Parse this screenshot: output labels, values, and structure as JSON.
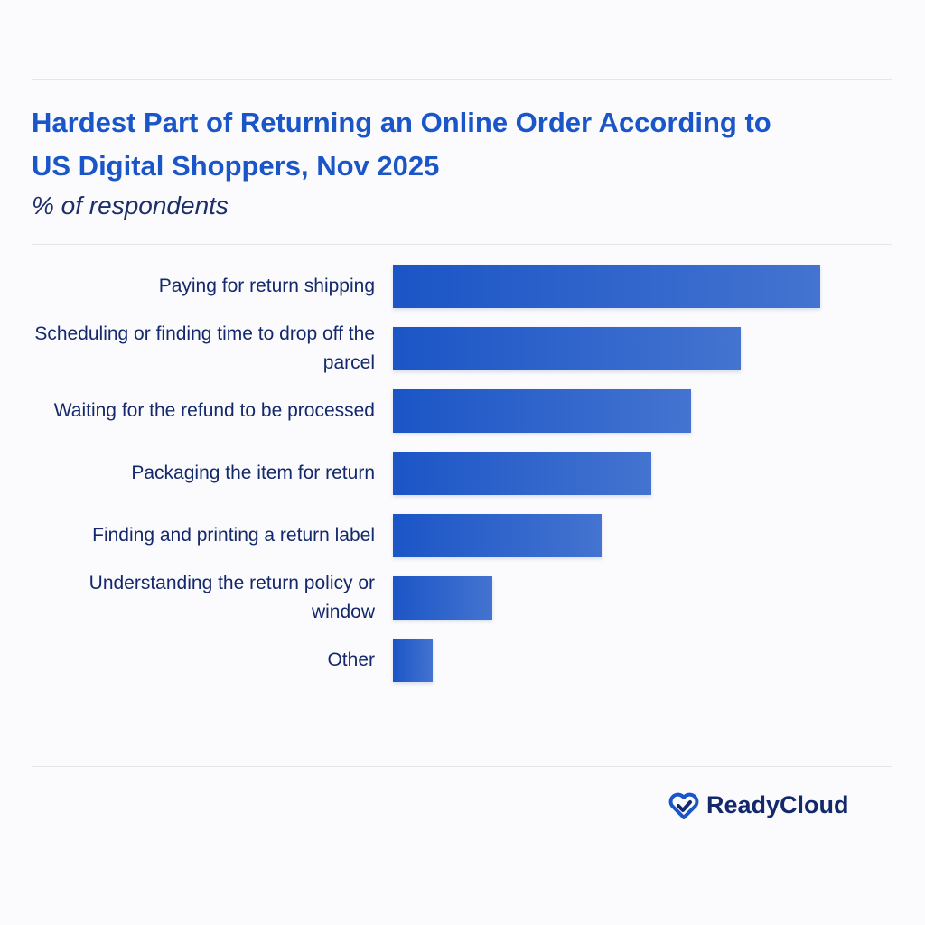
{
  "chart_data": {
    "type": "bar",
    "orientation": "horizontal",
    "title": "Hardest Part of Returning an Online Order According to US Digital Shoppers, Nov 2025",
    "subtitle": "% of respondents",
    "categories": [
      "Paying for return shipping",
      "Scheduling or finding time to drop off the parcel",
      "Waiting for the refund to be processed",
      "Packaging the item for return",
      "Finding and printing a return label",
      "Understanding the return policy or window",
      "Other"
    ],
    "values": [
      43,
      35,
      30,
      26,
      21,
      10,
      4
    ],
    "color": "#1b55c6",
    "xlim": [
      0,
      50
    ]
  },
  "brand": "ReadyCloud"
}
